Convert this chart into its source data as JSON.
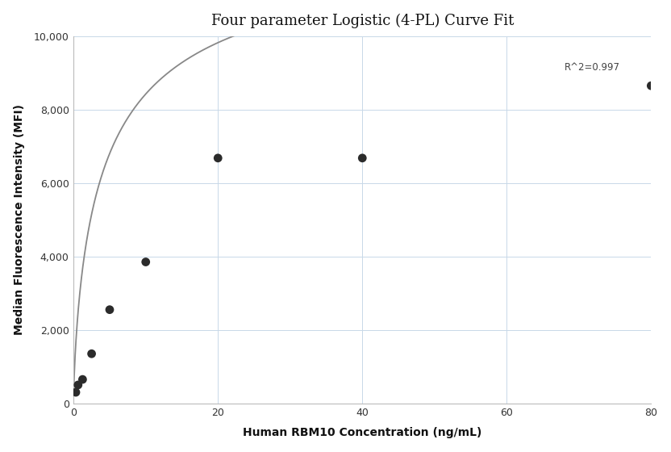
{
  "title": "Four parameter Logistic (4-PL) Curve Fit",
  "xlabel": "Human RBM10 Concentration (ng/mL)",
  "ylabel": "Median Fluorescence Intensity (MFI)",
  "data_points_x": [
    0.3125,
    0.625,
    1.25,
    2.5,
    5.0,
    10.0,
    20.0,
    40.0,
    80.0
  ],
  "data_points_y": [
    300,
    500,
    650,
    1350,
    2550,
    3850,
    6680,
    6680,
    8650
  ],
  "r_squared": "R^2=0.997",
  "r2_x": 68,
  "r2_y": 9150,
  "xlim": [
    0,
    80
  ],
  "ylim": [
    0,
    10000
  ],
  "yticks": [
    0,
    2000,
    4000,
    6000,
    8000,
    10000
  ],
  "xticks": [
    0,
    20,
    40,
    60,
    80
  ],
  "dot_color": "#2b2b2b",
  "dot_size": 60,
  "line_color": "#888888",
  "line_width": 1.3,
  "grid_color": "#c8d8e8",
  "bg_color": "#ffffff",
  "title_fontsize": 13,
  "label_fontsize": 10,
  "tick_fontsize": 9
}
